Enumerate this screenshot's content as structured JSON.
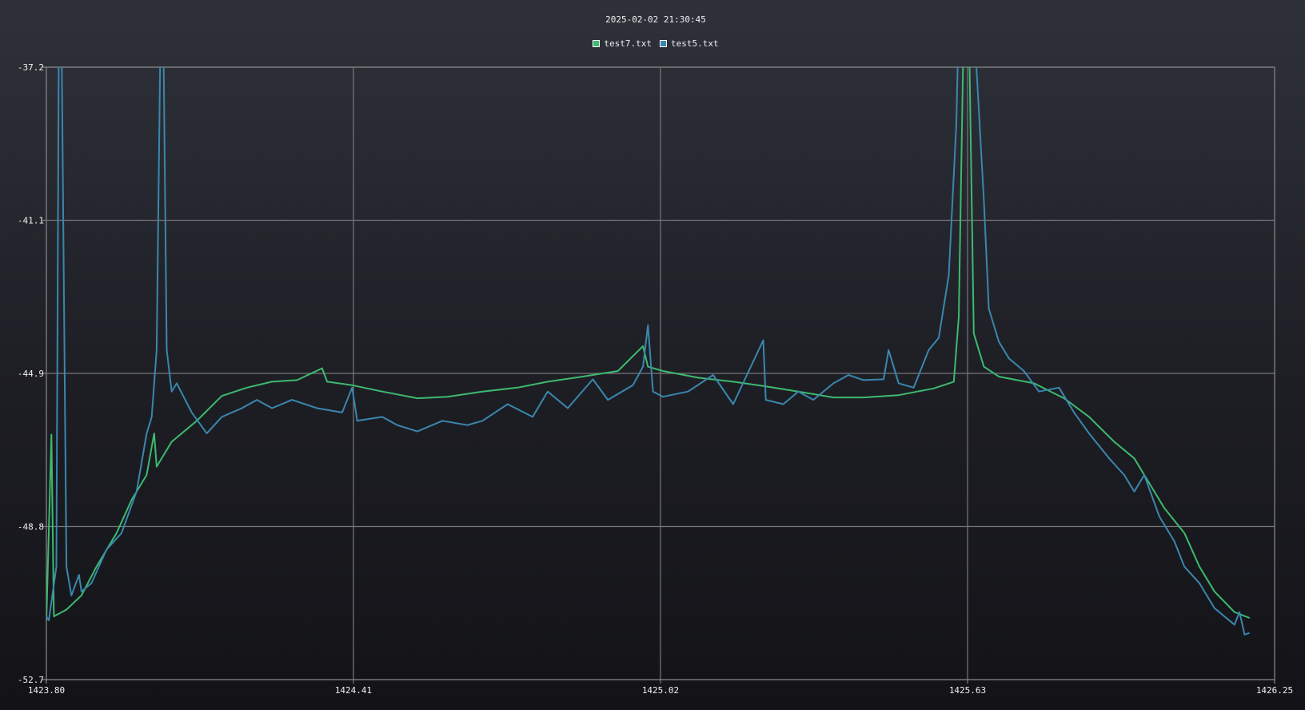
{
  "chart_data": {
    "type": "line",
    "title": "2025-02-02 21:30:45",
    "xlabel": "",
    "ylabel": "",
    "xlim": [
      1423.8,
      1426.25
    ],
    "ylim": [
      -52.7,
      -37.2
    ],
    "x_ticks": [
      "1423.80",
      "1424.41",
      "1425.02",
      "1425.63",
      "1426.25"
    ],
    "y_ticks": [
      "-37.2",
      "-41.1",
      "-44.9",
      "-48.8",
      "-52.7"
    ],
    "grid": true,
    "legend_position": "top-center",
    "series": [
      {
        "name": "test7.txt",
        "color": "#3dba6f",
        "points": [
          [
            1423.8,
            -51.2
          ],
          [
            1423.81,
            -46.5
          ],
          [
            1423.815,
            -51.1
          ],
          [
            1423.84,
            -50.93
          ],
          [
            1423.87,
            -50.57
          ],
          [
            1423.9,
            -49.84
          ],
          [
            1423.94,
            -48.99
          ],
          [
            1423.97,
            -48.15
          ],
          [
            1424.0,
            -47.52
          ],
          [
            1424.015,
            -46.47
          ],
          [
            1424.02,
            -47.31
          ],
          [
            1424.05,
            -46.68
          ],
          [
            1424.1,
            -46.15
          ],
          [
            1424.15,
            -45.52
          ],
          [
            1424.2,
            -45.31
          ],
          [
            1424.25,
            -45.16
          ],
          [
            1424.3,
            -45.12
          ],
          [
            1424.35,
            -44.82
          ],
          [
            1424.36,
            -45.16
          ],
          [
            1424.41,
            -45.25
          ],
          [
            1424.47,
            -45.41
          ],
          [
            1424.54,
            -45.58
          ],
          [
            1424.6,
            -45.54
          ],
          [
            1424.67,
            -45.41
          ],
          [
            1424.74,
            -45.31
          ],
          [
            1424.8,
            -45.16
          ],
          [
            1424.87,
            -45.03
          ],
          [
            1424.94,
            -44.89
          ],
          [
            1424.99,
            -44.26
          ],
          [
            1425.0,
            -44.78
          ],
          [
            1425.03,
            -44.89
          ],
          [
            1425.1,
            -45.06
          ],
          [
            1425.17,
            -45.16
          ],
          [
            1425.23,
            -45.27
          ],
          [
            1425.3,
            -45.41
          ],
          [
            1425.37,
            -45.56
          ],
          [
            1425.43,
            -45.56
          ],
          [
            1425.5,
            -45.5
          ],
          [
            1425.57,
            -45.33
          ],
          [
            1425.61,
            -45.16
          ],
          [
            1425.62,
            -43.52
          ],
          [
            1425.63,
            -36.0
          ],
          [
            1425.64,
            -36.0
          ],
          [
            1425.65,
            -43.94
          ],
          [
            1425.67,
            -44.78
          ],
          [
            1425.7,
            -45.03
          ],
          [
            1425.77,
            -45.2
          ],
          [
            1425.83,
            -45.58
          ],
          [
            1425.88,
            -46.05
          ],
          [
            1425.93,
            -46.68
          ],
          [
            1425.97,
            -47.1
          ],
          [
            1426.0,
            -47.73
          ],
          [
            1426.03,
            -48.36
          ],
          [
            1426.07,
            -48.99
          ],
          [
            1426.1,
            -49.84
          ],
          [
            1426.13,
            -50.47
          ],
          [
            1426.17,
            -50.99
          ],
          [
            1426.2,
            -51.14
          ]
        ]
      },
      {
        "name": "test5.txt",
        "color": "#3a87ad",
        "points": [
          [
            1423.8,
            -51.1
          ],
          [
            1423.805,
            -51.2
          ],
          [
            1423.82,
            -49.84
          ],
          [
            1423.825,
            -36.0
          ],
          [
            1423.83,
            -36.0
          ],
          [
            1423.84,
            -49.84
          ],
          [
            1423.85,
            -50.57
          ],
          [
            1423.865,
            -50.05
          ],
          [
            1423.87,
            -50.47
          ],
          [
            1423.89,
            -50.26
          ],
          [
            1423.92,
            -49.41
          ],
          [
            1423.95,
            -48.99
          ],
          [
            1423.98,
            -47.94
          ],
          [
            1424.0,
            -46.47
          ],
          [
            1424.01,
            -46.05
          ],
          [
            1424.02,
            -44.36
          ],
          [
            1424.028,
            -36.0
          ],
          [
            1424.033,
            -36.0
          ],
          [
            1424.04,
            -44.36
          ],
          [
            1424.05,
            -45.41
          ],
          [
            1424.06,
            -45.2
          ],
          [
            1424.09,
            -45.94
          ],
          [
            1424.12,
            -46.47
          ],
          [
            1424.15,
            -46.05
          ],
          [
            1424.19,
            -45.83
          ],
          [
            1424.22,
            -45.62
          ],
          [
            1424.25,
            -45.83
          ],
          [
            1424.29,
            -45.62
          ],
          [
            1424.34,
            -45.83
          ],
          [
            1424.39,
            -45.94
          ],
          [
            1424.41,
            -45.31
          ],
          [
            1424.42,
            -46.15
          ],
          [
            1424.47,
            -46.05
          ],
          [
            1424.5,
            -46.26
          ],
          [
            1424.54,
            -46.42
          ],
          [
            1424.59,
            -46.15
          ],
          [
            1424.64,
            -46.26
          ],
          [
            1424.67,
            -46.15
          ],
          [
            1424.72,
            -45.73
          ],
          [
            1424.77,
            -46.05
          ],
          [
            1424.8,
            -45.41
          ],
          [
            1424.84,
            -45.83
          ],
          [
            1424.89,
            -45.1
          ],
          [
            1424.92,
            -45.62
          ],
          [
            1424.97,
            -45.25
          ],
          [
            1424.99,
            -44.78
          ],
          [
            1425.0,
            -43.73
          ],
          [
            1425.01,
            -45.41
          ],
          [
            1425.03,
            -45.54
          ],
          [
            1425.08,
            -45.41
          ],
          [
            1425.13,
            -44.99
          ],
          [
            1425.17,
            -45.73
          ],
          [
            1425.23,
            -44.11
          ],
          [
            1425.235,
            -45.62
          ],
          [
            1425.27,
            -45.73
          ],
          [
            1425.3,
            -45.41
          ],
          [
            1425.33,
            -45.62
          ],
          [
            1425.37,
            -45.2
          ],
          [
            1425.4,
            -44.99
          ],
          [
            1425.43,
            -45.12
          ],
          [
            1425.47,
            -45.1
          ],
          [
            1425.48,
            -44.36
          ],
          [
            1425.5,
            -45.2
          ],
          [
            1425.53,
            -45.31
          ],
          [
            1425.56,
            -44.36
          ],
          [
            1425.58,
            -44.05
          ],
          [
            1425.6,
            -42.47
          ],
          [
            1425.615,
            -38.67
          ],
          [
            1425.62,
            -36.0
          ],
          [
            1425.65,
            -36.0
          ],
          [
            1425.67,
            -40.57
          ],
          [
            1425.68,
            -43.31
          ],
          [
            1425.7,
            -44.15
          ],
          [
            1425.72,
            -44.57
          ],
          [
            1425.75,
            -44.89
          ],
          [
            1425.78,
            -45.41
          ],
          [
            1425.82,
            -45.31
          ],
          [
            1425.85,
            -45.94
          ],
          [
            1425.88,
            -46.47
          ],
          [
            1425.92,
            -47.1
          ],
          [
            1425.95,
            -47.52
          ],
          [
            1425.97,
            -47.94
          ],
          [
            1425.99,
            -47.52
          ],
          [
            1426.02,
            -48.57
          ],
          [
            1426.05,
            -49.2
          ],
          [
            1426.07,
            -49.84
          ],
          [
            1426.1,
            -50.26
          ],
          [
            1426.13,
            -50.89
          ],
          [
            1426.17,
            -51.31
          ],
          [
            1426.18,
            -50.99
          ],
          [
            1426.19,
            -51.56
          ],
          [
            1426.2,
            -51.52
          ]
        ]
      }
    ]
  }
}
